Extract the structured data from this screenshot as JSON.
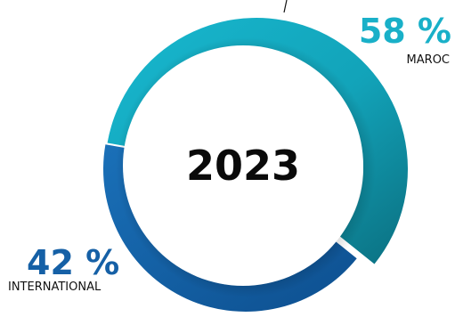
{
  "chart_data": {
    "type": "pie",
    "variant": "donut",
    "center_label": "2023",
    "categories": [
      "MAROC",
      "INTERNATIONAL"
    ],
    "values": [
      58,
      42
    ],
    "value_labels": [
      "58 %",
      "42 %"
    ],
    "colors": [
      "#19b0c8",
      "#1560a6"
    ],
    "legend": "none"
  }
}
